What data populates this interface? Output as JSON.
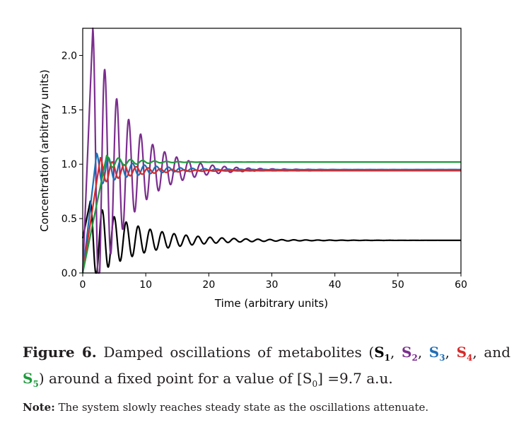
{
  "chart_data": {
    "type": "line",
    "title": "",
    "xlabel": "Time (arbitrary units)",
    "ylabel": "Concentration (arbitrary units)",
    "xlim": [
      0,
      60
    ],
    "ylim": [
      0,
      2.25
    ],
    "xticks": [
      0,
      10,
      20,
      30,
      40,
      50,
      60
    ],
    "xtick_labels": [
      "0",
      "10",
      "20",
      "30",
      "40",
      "50",
      "60"
    ],
    "yticks": [
      0.0,
      0.5,
      1.0,
      1.5,
      2.0
    ],
    "ytick_labels": [
      "0.0",
      "0.5",
      "1.0",
      "1.5",
      "2.0"
    ],
    "grid": false,
    "legend": "none",
    "series": [
      {
        "color": "#000000",
        "steady": 0.3,
        "amp": 0.36,
        "tau": 7.5,
        "period": 1.9,
        "phase": 2.0,
        "onset": 1.2,
        "start": 0.32
      },
      {
        "color": "#7b2d8e",
        "steady": 0.95,
        "amp": 1.3,
        "tau": 5.5,
        "period": 1.9,
        "phase": 1.95,
        "onset": 1.6,
        "start": 0.0
      },
      {
        "color": "#1f6fb5",
        "steady": 0.95,
        "amp": 0.15,
        "tau": 6.0,
        "period": 1.9,
        "phase": 2.3,
        "onset": 2.2,
        "start": 0.0
      },
      {
        "color": "#d62a2a",
        "steady": 0.94,
        "amp": 0.12,
        "tau": 5.0,
        "period": 1.9,
        "phase": 2.6,
        "onset": 2.8,
        "start": 0.0
      },
      {
        "color": "#1e9a3c",
        "steady": 1.02,
        "amp": 0.06,
        "tau": 4.0,
        "period": 1.9,
        "phase": 3.0,
        "onset": 3.8,
        "start": 0.0
      }
    ]
  },
  "caption": {
    "figure_label": "Figure 6.",
    "text_before": " Damped oscillations of metabolites (",
    "m1": "S",
    "m1_sub": "1",
    "m2": "S",
    "m2_sub": "2",
    "m3": "S",
    "m3_sub": "3",
    "m4": "S",
    "m4_sub": "4",
    "m5": "S",
    "m5_sub": "5",
    "sep1": ", ",
    "sep2": ", ",
    "sep3": ", ",
    "sep4": ", and ",
    "text_after": ") around a fixed point for a value of [S",
    "s0_sub": "0",
    "text_end": "] =9.7 a.u."
  },
  "note": {
    "label": "Note:",
    "text": " The system slowly reaches steady state as the oscillations attenuate."
  }
}
